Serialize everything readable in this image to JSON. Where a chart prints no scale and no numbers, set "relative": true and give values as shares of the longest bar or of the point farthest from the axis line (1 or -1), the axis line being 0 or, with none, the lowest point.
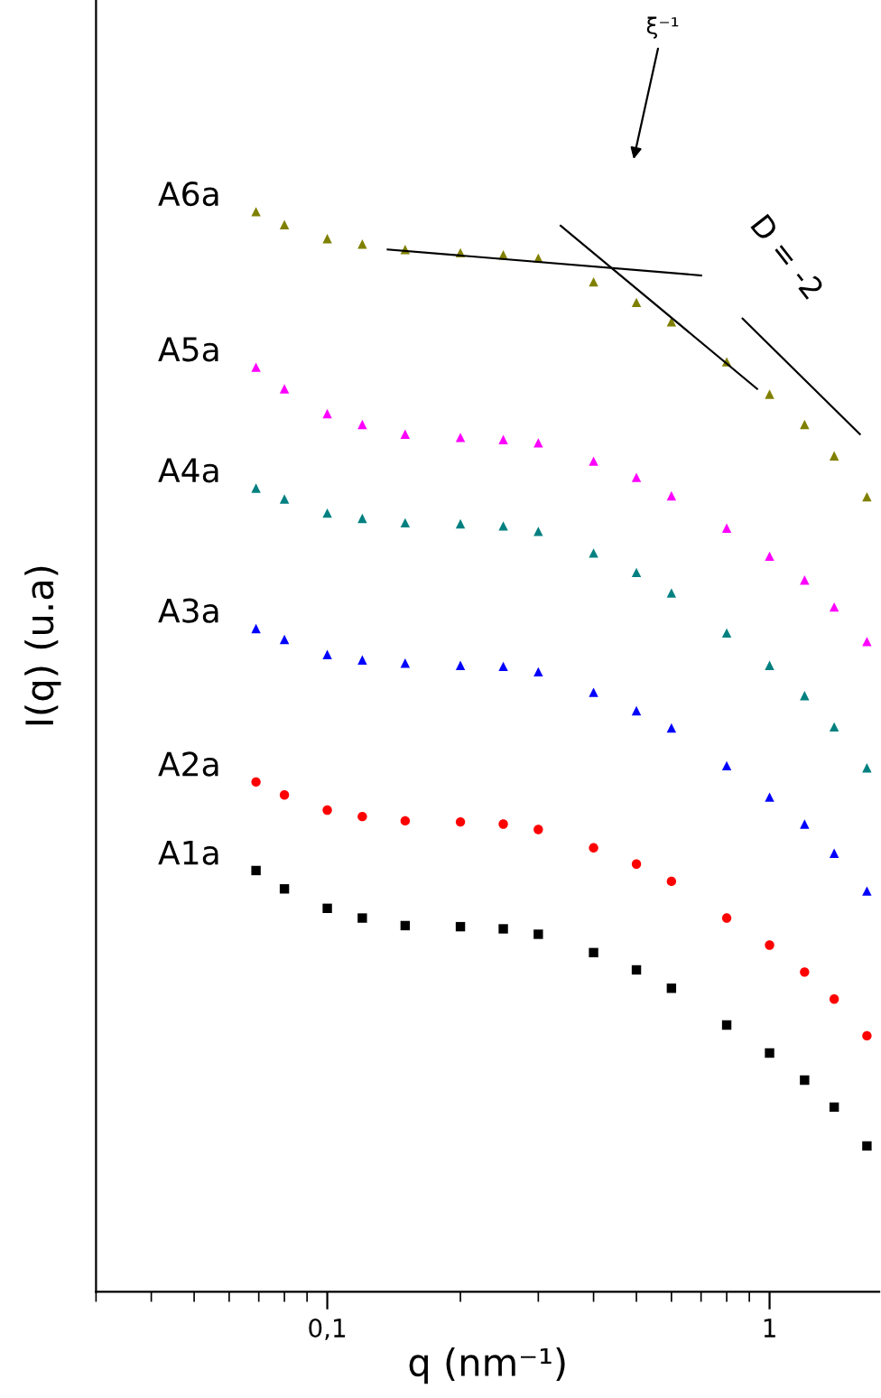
{
  "chart_data": {
    "type": "scatter",
    "relative": true,
    "xlabel": "q (nm⁻¹)",
    "ylabel": "I(q) (u.a)",
    "log": "x",
    "grid": false,
    "legend": false,
    "xlim": [
      0.03,
      1.77
    ],
    "xticks": [
      {
        "value": 0.1,
        "label": "0,1"
      },
      1
    ],
    "x": [
      0.069,
      0.08,
      0.1,
      0.12,
      0.15,
      0.2,
      0.25,
      0.3,
      0.4,
      0.5,
      0.6,
      0.8,
      1.0,
      1.2,
      1.4,
      1.66
    ],
    "series": [
      {
        "name": "A1a",
        "color": "#000000",
        "marker": "square",
        "values": [
          0.39,
          0.373,
          0.355,
          0.346,
          0.339,
          0.338,
          0.336,
          0.331,
          0.314,
          0.298,
          0.281,
          0.247,
          0.221,
          0.196,
          0.171,
          0.135
        ]
      },
      {
        "name": "A2a",
        "color": "#ff0000",
        "marker": "circle",
        "values": [
          0.472,
          0.46,
          0.446,
          0.44,
          0.436,
          0.435,
          0.433,
          0.428,
          0.411,
          0.396,
          0.38,
          0.346,
          0.321,
          0.296,
          0.271,
          0.237
        ]
      },
      {
        "name": "A3a",
        "color": "#0000ff",
        "marker": "triangle",
        "values": [
          0.614,
          0.604,
          0.59,
          0.585,
          0.582,
          0.58,
          0.579,
          0.574,
          0.555,
          0.538,
          0.522,
          0.487,
          0.458,
          0.433,
          0.406,
          0.371
        ]
      },
      {
        "name": "A4a",
        "color": "#008080",
        "marker": "triangle",
        "values": [
          0.744,
          0.734,
          0.721,
          0.716,
          0.712,
          0.711,
          0.709,
          0.704,
          0.684,
          0.666,
          0.647,
          0.61,
          0.58,
          0.552,
          0.523,
          0.485
        ]
      },
      {
        "name": "A5a",
        "color": "#ff00ff",
        "marker": "triangle",
        "values": [
          0.856,
          0.836,
          0.813,
          0.803,
          0.794,
          0.791,
          0.789,
          0.786,
          0.769,
          0.754,
          0.737,
          0.707,
          0.681,
          0.659,
          0.634,
          0.602
        ]
      },
      {
        "name": "A6a",
        "color": "#808000",
        "marker": "triangle",
        "values": [
          1.0,
          0.988,
          0.975,
          0.97,
          0.965,
          0.962,
          0.96,
          0.957,
          0.935,
          0.916,
          0.898,
          0.861,
          0.831,
          0.803,
          0.774,
          0.736
        ]
      },
      {
        "type": "line",
        "color": "#000000",
        "line_style": "solid",
        "x": [
          0.137,
          0.7
        ],
        "values": [
          0.965,
          0.941
        ]
      },
      {
        "type": "line",
        "color": "#000000",
        "line_style": "solid",
        "x": [
          0.337,
          0.937
        ],
        "values": [
          0.987,
          0.836
        ]
      },
      {
        "type": "line",
        "color": "#000000",
        "line_style": "solid",
        "x": [
          0.869,
          1.6
        ],
        "values": [
          0.901,
          0.794
        ]
      }
    ],
    "annotations": [
      "ξ⁻¹",
      "D = -2"
    ]
  }
}
